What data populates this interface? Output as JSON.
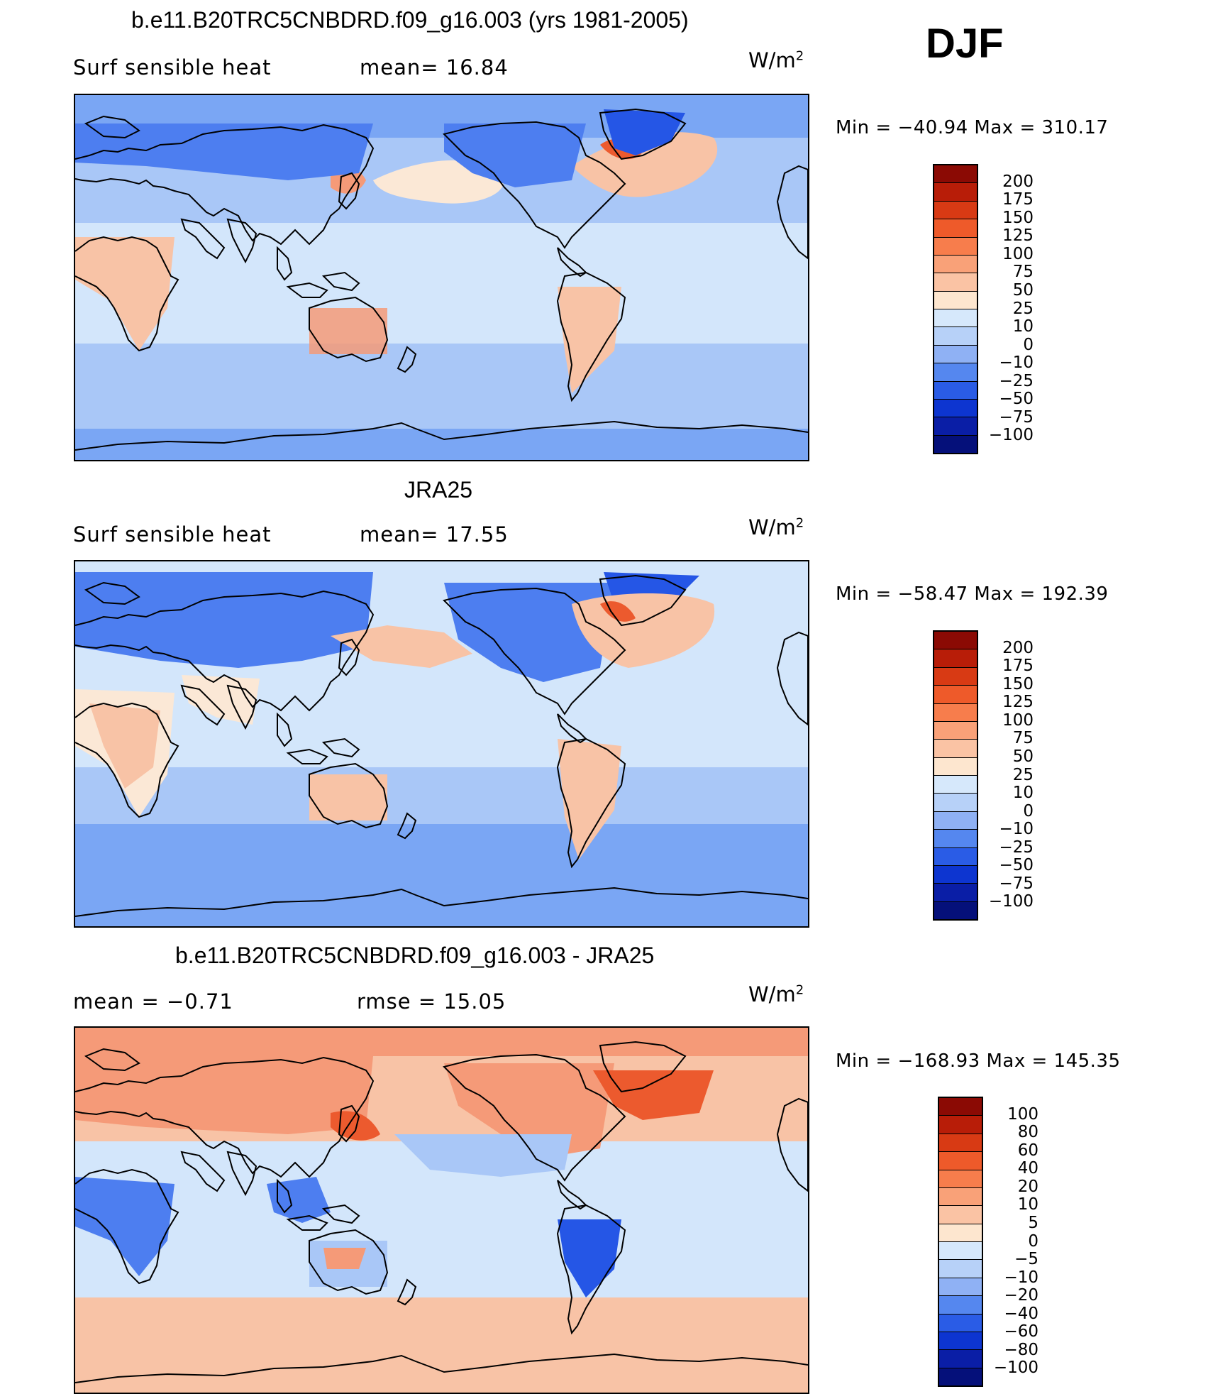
{
  "season": "DJF",
  "colors": {
    "ocean_light": "#d3e6fb",
    "ocean_mid": "#a9c7f7",
    "ocean_blue": "#7aa6f4",
    "cold": "#4d7ef0",
    "cold_dark": "#2556e6",
    "warm_light": "#fbe8d6",
    "warm": "#f8c3a6",
    "warm_mid": "#f59a78",
    "hot": "#ec5a2e",
    "hot_dark": "#9b1208",
    "coast": "#000000"
  },
  "panels": [
    {
      "id": "model",
      "title": "b.e11.B20TRC5CNBDRD.f09_g16.003 (yrs 1981-2005)",
      "left_label": "Surf  sensible  heat",
      "center_label": "mean=   16.84",
      "units": "W/m",
      "units_sup": "2",
      "minmax": "Min  =  −40.94  Max  =  310.17",
      "colorbar": {
        "labels": [
          "200",
          "175",
          "150",
          "125",
          "100",
          "75",
          "50",
          "25",
          "10",
          "0",
          "−10",
          "−25",
          "−50",
          "−75",
          "−100"
        ],
        "colors": [
          "#8b0a04",
          "#b81d08",
          "#d83a14",
          "#ee5a2a",
          "#f77d4c",
          "#f9a178",
          "#fac3a4",
          "#fde6cf",
          "#d6e8fb",
          "#b7d1f8",
          "#8fb1f4",
          "#5587ef",
          "#2a5ce6",
          "#0d35d0",
          "#0a1ea6",
          "#05107a"
        ]
      }
    },
    {
      "id": "obs",
      "title": "JRA25",
      "left_label": "Surf  sensible  heat",
      "center_label": "mean=   17.55",
      "units": "W/m",
      "units_sup": "2",
      "minmax": "Min  =  −58.47  Max  =  192.39",
      "colorbar": {
        "labels": [
          "200",
          "175",
          "150",
          "125",
          "100",
          "75",
          "50",
          "25",
          "10",
          "0",
          "−10",
          "−25",
          "−50",
          "−75",
          "−100"
        ],
        "colors": [
          "#8b0a04",
          "#b81d08",
          "#d83a14",
          "#ee5a2a",
          "#f77d4c",
          "#f9a178",
          "#fac3a4",
          "#fde6cf",
          "#d6e8fb",
          "#b7d1f8",
          "#8fb1f4",
          "#5587ef",
          "#2a5ce6",
          "#0d35d0",
          "#0a1ea6",
          "#05107a"
        ]
      }
    },
    {
      "id": "diff",
      "title": "b.e11.B20TRC5CNBDRD.f09_g16.003 - JRA25",
      "left_label": "mean  =    −0.71",
      "center_label": "rmse  =    15.05",
      "units": "W/m",
      "units_sup": "2",
      "minmax": "Min  =  −168.93  Max  =  145.35",
      "colorbar": {
        "labels": [
          "100",
          "80",
          "60",
          "40",
          "20",
          "10",
          "5",
          "0",
          "−5",
          "−10",
          "−20",
          "−40",
          "−60",
          "−80",
          "−100"
        ],
        "colors": [
          "#8b0a04",
          "#b81d08",
          "#d83a14",
          "#ee5a2a",
          "#f77d4c",
          "#f9a178",
          "#fac3a4",
          "#fde6cf",
          "#d6e8fb",
          "#b7d1f8",
          "#8fb1f4",
          "#5587ef",
          "#2a5ce6",
          "#0d35d0",
          "#0a1ea6",
          "#05107a"
        ]
      }
    }
  ]
}
